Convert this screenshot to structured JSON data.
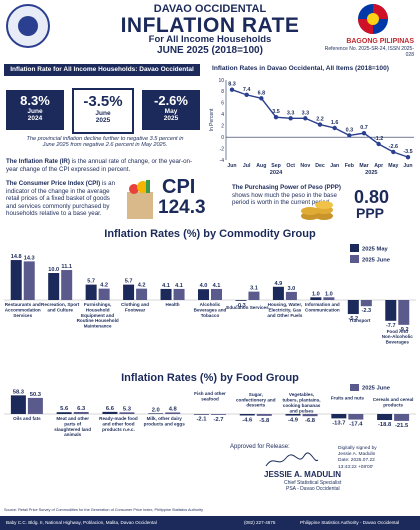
{
  "header": {
    "region": "DAVAO OCCIDENTAL",
    "title": "INFLATION RATE",
    "subtitle": "For All Income Households",
    "period": "JUNE 2025 (2018=100)",
    "brand": "BAGONG PILIPINAS",
    "reference": "Reference No. 2025-SR-24, ISSN 2025-028"
  },
  "summary": {
    "panel_title": "Inflation Rate for All Income Households: Davao Occidental",
    "boxes": [
      {
        "value": "8.3%",
        "label1": "June",
        "label2": "2024"
      },
      {
        "value": "-3.5%",
        "label1": "June",
        "label2": "2025"
      },
      {
        "value": "-2.6%",
        "label1": "May",
        "label2": "2025"
      }
    ],
    "note": "The provincial inflation decline further to negative 3.5 percent in June 2025 from negative 2.6 percent in May 2025.",
    "ir_def_bold": "The Inflation Rate (IR)",
    "ir_def": " is the annual rate of change, or the year-on-year change of the CPI expressed in percent.",
    "cpi_def_bold": "The Consumer Price Index (CPI)",
    "cpi_def": " is an indicator of the change in the average retail prices of a fixed basket of goods and services commonly purchased by households relative to a base year.",
    "cpi_label": "CPI",
    "cpi_value": "124.3",
    "ppp_def_bold": "The Purchasing Power of Peso (PPP)",
    "ppp_def": " shows how much the peso in the base period is worth in the current period.",
    "ppp_value": "0.80",
    "ppp_label": "PPP"
  },
  "colors": {
    "navy": "#1b2a5a",
    "purple": "#5b5a8c",
    "line": "#2a3f8f"
  },
  "footer": {
    "source": "Source: Retail Price Survey of Commodities for the Generation of Consumer Price Index, Philippine Statistics Authority",
    "approved": "Approved for Release:",
    "signer": "JESSIE A. MADULIN",
    "signer_title1": "Chief Statistical Specialist",
    "signer_title2": "PSA - Davao Occidental",
    "digital1": "Digitally signed by",
    "digital2": "Jessie A. Madulin",
    "digital3": "Date: 2025.07.22",
    "digital4": "13:43:22 +08'00'",
    "address": "Baby C.C. Bldg. II, National Highway, Poblacion, Malita, Davao Occidental",
    "phone": "(082) 227-4675",
    "fb": "Philippine Statistics Authority - Davao Occidental"
  },
  "chart_data": [
    {
      "type": "line",
      "title": "Inflation Rates in Davao Occidental, All Items (2018=100)",
      "ylabel": "In Percent",
      "x": [
        "Jun",
        "Jul",
        "Aug",
        "Sep",
        "Oct",
        "Nov",
        "Dec",
        "Jan",
        "Feb",
        "Mar",
        "Apr",
        "May",
        "Jun"
      ],
      "year_labels": [
        "2024",
        "2025"
      ],
      "values": [
        8.3,
        7.4,
        6.8,
        3.5,
        3.3,
        3.3,
        2.2,
        1.6,
        0.3,
        0.7,
        -1.2,
        -2.6,
        -3.5
      ],
      "ylim": [
        -4,
        10
      ],
      "yticks": [
        -4,
        -2,
        0,
        2,
        4,
        6,
        8,
        10
      ],
      "grid": false
    },
    {
      "type": "bar",
      "title": "Inflation Rates (%) by Commodity Group",
      "legend": "top-right",
      "categories": [
        "Restaurants and Accommodation Services",
        "Recreation, Sport and Culture",
        "Furnishings, Household Equipment and Routine Household Maintenance",
        "Clothing and Footwear",
        "Health",
        "Alcoholic Beverages and Tobacco",
        "Education Services",
        "Housing, Water, Electricity, Gas and Other Fuels",
        "Information and Communication",
        "Transport",
        "Food And Non-Alcoholic Beverages"
      ],
      "series": [
        {
          "name": "2025 May",
          "values": [
            14.8,
            10.0,
            5.7,
            5.7,
            4.1,
            4.0,
            -0.3,
            4.9,
            1.0,
            -5.2,
            -7.7
          ]
        },
        {
          "name": "2025 June",
          "values": [
            14.3,
            11.1,
            4.2,
            4.2,
            4.1,
            4.1,
            3.1,
            3.0,
            1.0,
            -2.3,
            -9.2
          ]
        }
      ],
      "ylim": [
        -10,
        16
      ]
    },
    {
      "type": "bar",
      "title": "Inflation Rates (%) by Food Group",
      "legend": "top-right",
      "categories": [
        "Oils and fats",
        "Meat and other parts of slaughtered land animals",
        "Ready-made food and other food products n.e.c.",
        "Milk, other dairy products and eggs",
        "Fish and other seafood",
        "Sugar, confectionery and desserts",
        "Vegetables, tubers, plantains, cooking bananas and pulses",
        "Fruits and nuts",
        "Cereals and cereal products"
      ],
      "series": [
        {
          "name": "2025 May",
          "values": [
            58.3,
            5.6,
            6.6,
            2.0,
            -2.1,
            -4.6,
            -4.9,
            -13.7,
            -18.8
          ]
        },
        {
          "name": "2025 June",
          "values": [
            50.3,
            6.3,
            5.3,
            4.8,
            -2.7,
            -5.8,
            -6.8,
            -17.4,
            -21.5
          ]
        }
      ],
      "ylim": [
        -25,
        65
      ]
    }
  ]
}
